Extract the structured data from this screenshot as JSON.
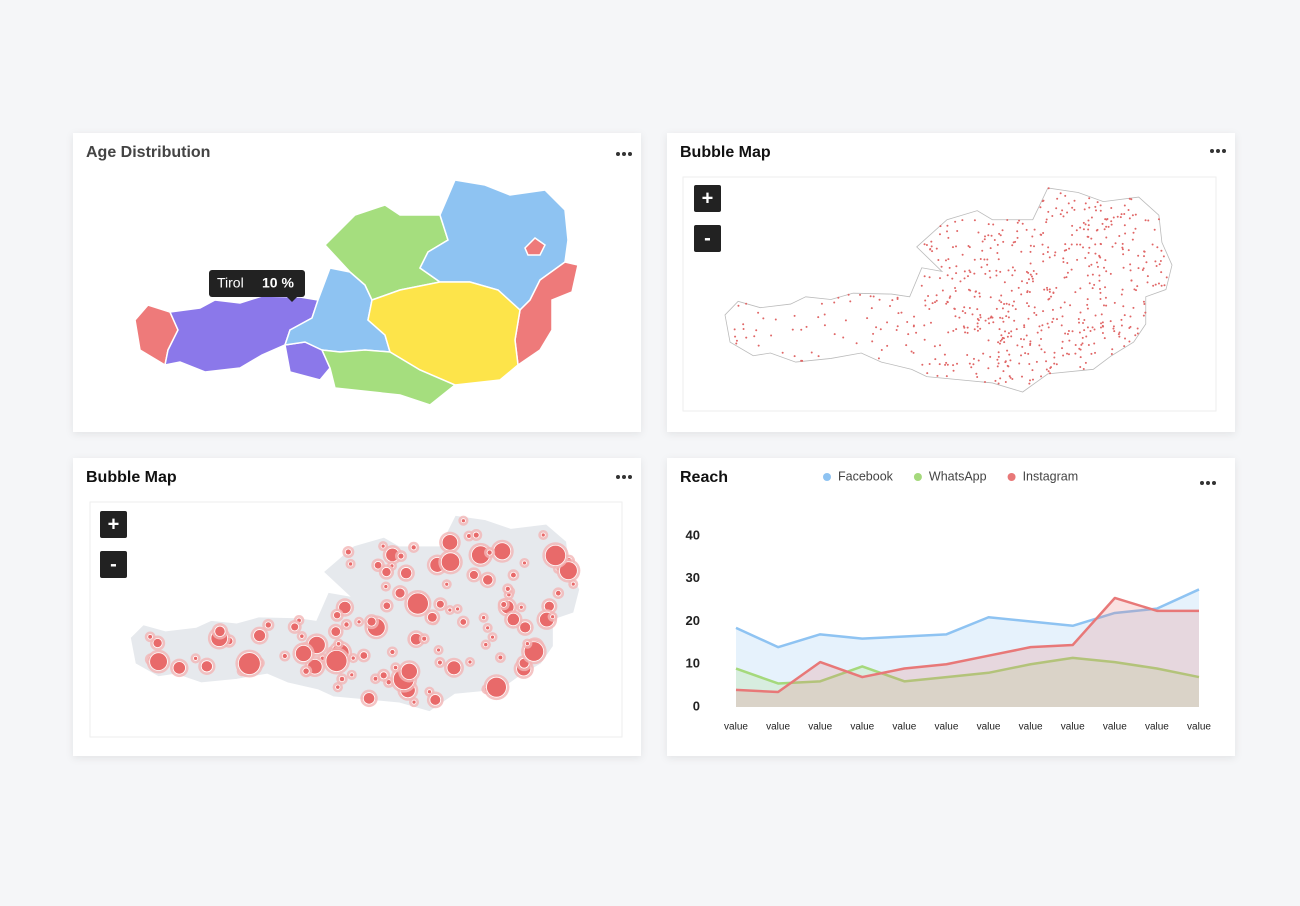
{
  "panels": [
    {
      "title": "Age Distribution",
      "tooltip": {
        "label": "Tirol",
        "value": "10 %"
      }
    },
    {
      "title": "Bubble Map",
      "zoom_in": "+",
      "zoom_out": "-"
    },
    {
      "title": "Bubble Map",
      "zoom_in": "+",
      "zoom_out": "-"
    }
  ],
  "chart_data": {
    "type": "line",
    "title": "Reach",
    "fill_area": true,
    "legend": "top",
    "categories": [
      "value",
      "value",
      "value",
      "value",
      "value",
      "value",
      "value",
      "value",
      "value",
      "value",
      "value",
      "value"
    ],
    "ylim": [
      0,
      40
    ],
    "yticks": [
      0,
      10,
      20,
      30,
      40
    ],
    "series": [
      {
        "name": "Facebook",
        "color": "#8ec3f2",
        "values": [
          18.5,
          14,
          17,
          16,
          16.5,
          17,
          21,
          20,
          19,
          22,
          23,
          27.5
        ]
      },
      {
        "name": "WhatsApp",
        "color": "#a5d97c",
        "values": [
          9,
          5.5,
          6,
          9.5,
          6,
          7,
          8,
          10,
          11.5,
          10.5,
          9,
          7
        ]
      },
      {
        "name": "Instagram",
        "color": "#e87878",
        "values": [
          4,
          3.5,
          10.5,
          7,
          9,
          10,
          12,
          14,
          14.5,
          25.5,
          22.5,
          22.5
        ]
      }
    ]
  }
}
